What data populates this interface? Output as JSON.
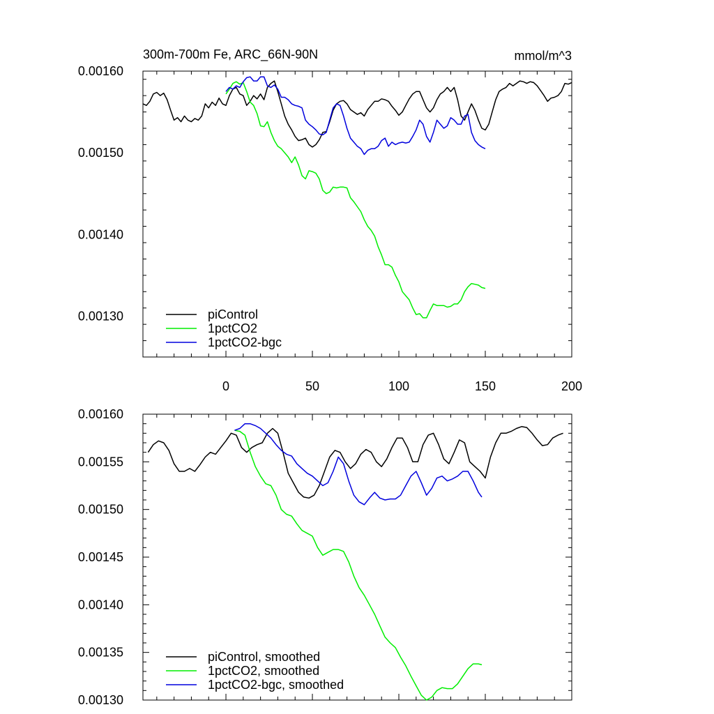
{
  "colors": {
    "piControl": "#000000",
    "1pctCO2": "#00ee00",
    "1pctCO2-bgc": "#0000dd"
  },
  "chart_data": [
    {
      "type": "line",
      "title": "300m-700m Fe, ARC_66N-90N",
      "units": "mmol/m^3",
      "xlim": [
        -48,
        200
      ],
      "ylim": [
        0.00125,
        0.0016
      ],
      "xticks": [
        0,
        50,
        100,
        150,
        200
      ],
      "xtick_labels": [
        "0",
        "50",
        "100",
        "150",
        "200"
      ],
      "yticks": [
        0.0013,
        0.0014,
        0.0015,
        0.0016
      ],
      "ytick_labels": [
        "0.00130",
        "0.00140",
        "0.00150",
        "0.00160"
      ],
      "legend_position": "bottom-left",
      "series": [
        {
          "name": "piControl",
          "color_key": "piControl",
          "x": [
            -48,
            -46,
            -44,
            -42,
            -40,
            -38,
            -36,
            -34,
            -32,
            -30,
            -28,
            -26,
            -24,
            -22,
            -20,
            -18,
            -16,
            -14,
            -12,
            -10,
            -8,
            -6,
            -4,
            -2,
            0,
            2,
            4,
            6,
            8,
            10,
            12,
            14,
            16,
            18,
            20,
            22,
            24,
            26,
            28,
            30,
            32,
            34,
            36,
            38,
            40,
            42,
            44,
            46,
            48,
            50,
            52,
            54,
            56,
            58,
            60,
            62,
            64,
            66,
            68,
            70,
            72,
            74,
            76,
            78,
            80,
            82,
            84,
            86,
            88,
            90,
            92,
            94,
            96,
            98,
            100,
            102,
            104,
            106,
            108,
            110,
            112,
            114,
            116,
            118,
            120,
            122,
            124,
            126,
            128,
            130,
            132,
            134,
            136,
            138,
            140,
            142,
            144,
            146,
            148,
            150,
            152,
            154,
            156,
            158,
            160,
            162,
            164,
            166,
            168,
            170,
            172,
            174,
            176,
            178,
            180,
            182,
            184,
            186,
            188,
            190,
            192,
            194,
            196,
            198,
            200
          ],
          "y": [
            0.00156,
            0.001558,
            0.001563,
            0.001572,
            0.001574,
            0.00157,
            0.001573,
            0.001565,
            0.001552,
            0.00154,
            0.001543,
            0.001538,
            0.001545,
            0.00154,
            0.001538,
            0.001542,
            0.00154,
            0.001545,
            0.00156,
            0.001555,
            0.001562,
            0.001558,
            0.001567,
            0.00156,
            0.001558,
            0.00157,
            0.001578,
            0.00158,
            0.001572,
            0.00157,
            0.001558,
            0.001563,
            0.00157,
            0.001566,
            0.001572,
            0.001565,
            0.00158,
            0.001585,
            0.001588,
            0.001575,
            0.00156,
            0.001545,
            0.001535,
            0.001528,
            0.00152,
            0.001515,
            0.001516,
            0.001518,
            0.00151,
            0.001507,
            0.00151,
            0.001516,
            0.001525,
            0.001526,
            0.001538,
            0.001552,
            0.00156,
            0.001563,
            0.001564,
            0.00156,
            0.001553,
            0.00155,
            0.001547,
            0.001549,
            0.001545,
            0.001553,
            0.001558,
            0.001563,
            0.001563,
            0.001566,
            0.001565,
            0.001563,
            0.001557,
            0.001552,
            0.001546,
            0.00155,
            0.001558,
            0.001566,
            0.001572,
            0.001575,
            0.001575,
            0.001565,
            0.001555,
            0.00155,
            0.001555,
            0.001565,
            0.001572,
            0.001575,
            0.00158,
            0.001575,
            0.00158,
            0.001565,
            0.001545,
            0.00154,
            0.00155,
            0.00156,
            0.001552,
            0.00154,
            0.00153,
            0.001528,
            0.001535,
            0.00155,
            0.001565,
            0.001575,
            0.001578,
            0.00158,
            0.001585,
            0.001582,
            0.001585,
            0.001588,
            0.001587,
            0.001585,
            0.001587,
            0.001586,
            0.001582,
            0.001576,
            0.00157,
            0.001563,
            0.001567,
            0.001568,
            0.00157,
            0.001575,
            0.001585,
            0.001584,
            0.001586
          ]
        },
        {
          "name": "1pctCO2",
          "color_key": "1pctCO2",
          "x": [
            0,
            2,
            4,
            6,
            8,
            10,
            12,
            14,
            16,
            18,
            20,
            22,
            24,
            26,
            28,
            30,
            32,
            34,
            36,
            38,
            40,
            42,
            44,
            46,
            48,
            50,
            52,
            54,
            56,
            58,
            60,
            62,
            64,
            66,
            68,
            70,
            72,
            74,
            76,
            78,
            80,
            82,
            84,
            86,
            88,
            90,
            92,
            94,
            96,
            98,
            100,
            102,
            104,
            106,
            108,
            110,
            112,
            114,
            116,
            118,
            120,
            122,
            124,
            126,
            128,
            130,
            132,
            134,
            136,
            138,
            140,
            142,
            144,
            146,
            148,
            150
          ],
          "y": [
            0.001572,
            0.001578,
            0.001585,
            0.001587,
            0.001584,
            0.001586,
            0.001575,
            0.001562,
            0.001558,
            0.001548,
            0.001533,
            0.001532,
            0.001538,
            0.001525,
            0.001515,
            0.001508,
            0.001505,
            0.0015,
            0.001495,
            0.001488,
            0.001495,
            0.001485,
            0.001472,
            0.001468,
            0.001478,
            0.001477,
            0.001475,
            0.001468,
            0.001454,
            0.00145,
            0.001452,
            0.001458,
            0.001457,
            0.001458,
            0.001458,
            0.001457,
            0.001445,
            0.00144,
            0.001434,
            0.001428,
            0.001418,
            0.00141,
            0.001405,
            0.001398,
            0.001385,
            0.001375,
            0.001363,
            0.001363,
            0.00136,
            0.00135,
            0.001342,
            0.00133,
            0.001325,
            0.00132,
            0.00131,
            0.001302,
            0.001303,
            0.001298,
            0.001298,
            0.001307,
            0.001315,
            0.001313,
            0.001313,
            0.001313,
            0.001311,
            0.001312,
            0.001315,
            0.001315,
            0.00132,
            0.00133,
            0.001336,
            0.00134,
            0.001339,
            0.001338,
            0.001335,
            0.001334
          ]
        },
        {
          "name": "1pctCO2-bgc",
          "color_key": "1pctCO2-bgc",
          "x": [
            0,
            2,
            4,
            6,
            8,
            10,
            12,
            14,
            16,
            18,
            20,
            22,
            24,
            26,
            28,
            30,
            32,
            34,
            36,
            38,
            40,
            42,
            44,
            46,
            48,
            50,
            52,
            54,
            56,
            58,
            60,
            62,
            64,
            66,
            68,
            70,
            72,
            74,
            76,
            78,
            80,
            82,
            84,
            86,
            88,
            90,
            92,
            94,
            96,
            98,
            100,
            102,
            104,
            106,
            108,
            110,
            112,
            114,
            116,
            118,
            120,
            122,
            124,
            126,
            128,
            130,
            132,
            134,
            136,
            138,
            140,
            142,
            144,
            146,
            148,
            150
          ],
          "y": [
            0.001575,
            0.00158,
            0.001578,
            0.001582,
            0.00158,
            0.001587,
            0.001592,
            0.001593,
            0.001588,
            0.001588,
            0.001593,
            0.001593,
            0.001582,
            0.00158,
            0.001583,
            0.001578,
            0.001568,
            0.001568,
            0.001565,
            0.00156,
            0.001558,
            0.001557,
            0.001555,
            0.00154,
            0.001535,
            0.001532,
            0.001528,
            0.001523,
            0.001522,
            0.001525,
            0.00154,
            0.001555,
            0.00156,
            0.001558,
            0.001545,
            0.00153,
            0.001518,
            0.001513,
            0.001508,
            0.001505,
            0.001498,
            0.001503,
            0.001505,
            0.001505,
            0.001508,
            0.001515,
            0.001518,
            0.001508,
            0.001513,
            0.00151,
            0.001512,
            0.001513,
            0.001512,
            0.001513,
            0.00152,
            0.001528,
            0.00154,
            0.001535,
            0.00152,
            0.001513,
            0.001525,
            0.00154,
            0.001535,
            0.00153,
            0.001533,
            0.001543,
            0.00154,
            0.001535,
            0.001535,
            0.001545,
            0.001547,
            0.001525,
            0.001515,
            0.00151,
            0.001507,
            0.001505
          ]
        }
      ]
    },
    {
      "type": "line",
      "title": "",
      "units": "",
      "xlim": [
        -48,
        200
      ],
      "ylim": [
        0.0013,
        0.0016
      ],
      "xticks": [
        0,
        50,
        100,
        150,
        200
      ],
      "yticks": [
        0.0013,
        0.00135,
        0.0014,
        0.00145,
        0.0015,
        0.00155,
        0.0016
      ],
      "ytick_labels": [
        "0.00130",
        "0.00135",
        "0.00140",
        "0.00145",
        "0.00150",
        "0.00155",
        "0.00160"
      ],
      "legend_position": "bottom-left",
      "series": [
        {
          "name": "piControl, smoothed",
          "color_key": "piControl",
          "x": [
            -45,
            -42,
            -39,
            -36,
            -33,
            -30,
            -27,
            -24,
            -21,
            -18,
            -15,
            -12,
            -9,
            -6,
            -3,
            0,
            3,
            6,
            9,
            12,
            15,
            18,
            21,
            24,
            27,
            30,
            33,
            36,
            39,
            42,
            45,
            48,
            51,
            54,
            57,
            60,
            63,
            66,
            69,
            72,
            75,
            78,
            81,
            84,
            87,
            90,
            93,
            96,
            99,
            102,
            105,
            108,
            111,
            114,
            117,
            120,
            123,
            126,
            129,
            132,
            135,
            138,
            141,
            144,
            147,
            150,
            153,
            156,
            159,
            162,
            165,
            168,
            171,
            174,
            177,
            180,
            183,
            186,
            189,
            192,
            195
          ],
          "y": [
            0.00156,
            0.001568,
            0.001572,
            0.00157,
            0.001562,
            0.001548,
            0.00154,
            0.00154,
            0.001543,
            0.00154,
            0.001547,
            0.001555,
            0.00156,
            0.001558,
            0.001565,
            0.001572,
            0.00158,
            0.001578,
            0.001565,
            0.00156,
            0.001565,
            0.001568,
            0.00157,
            0.00158,
            0.001585,
            0.00158,
            0.00156,
            0.001538,
            0.001528,
            0.001518,
            0.001513,
            0.001512,
            0.001515,
            0.001525,
            0.00154,
            0.001555,
            0.001562,
            0.00156,
            0.00155,
            0.001543,
            0.001548,
            0.001558,
            0.001563,
            0.00156,
            0.00155,
            0.001545,
            0.001553,
            0.001565,
            0.001575,
            0.001575,
            0.001565,
            0.00155,
            0.00155,
            0.001568,
            0.001578,
            0.00158,
            0.001568,
            0.001553,
            0.001548,
            0.00156,
            0.001573,
            0.00157,
            0.00155,
            0.001545,
            0.00154,
            0.001533,
            0.001555,
            0.00157,
            0.00158,
            0.00158,
            0.001582,
            0.001585,
            0.001587,
            0.001586,
            0.00158,
            0.001573,
            0.001567,
            0.001568,
            0.001575,
            0.001578,
            0.00158
          ]
        },
        {
          "name": "1pctCO2, smoothed",
          "color_key": "1pctCO2",
          "x": [
            5,
            8,
            11,
            14,
            17,
            20,
            23,
            26,
            29,
            32,
            35,
            38,
            41,
            44,
            47,
            50,
            53,
            56,
            59,
            62,
            65,
            68,
            71,
            74,
            77,
            80,
            83,
            86,
            89,
            92,
            95,
            98,
            101,
            104,
            107,
            110,
            113,
            116,
            119,
            122,
            125,
            128,
            131,
            134,
            137,
            140,
            143,
            146,
            148
          ],
          "y": [
            0.001583,
            0.001582,
            0.001578,
            0.00156,
            0.001545,
            0.001535,
            0.001527,
            0.001525,
            0.001515,
            0.0015,
            0.001495,
            0.001493,
            0.001485,
            0.001478,
            0.001475,
            0.001472,
            0.00146,
            0.001452,
            0.001455,
            0.001458,
            0.001458,
            0.001456,
            0.001445,
            0.00143,
            0.001418,
            0.00141,
            0.0014,
            0.00139,
            0.001378,
            0.001366,
            0.00136,
            0.001355,
            0.001345,
            0.001336,
            0.001325,
            0.001315,
            0.001305,
            0.0013,
            0.001303,
            0.00131,
            0.001313,
            0.001312,
            0.001312,
            0.001317,
            0.001325,
            0.001333,
            0.001338,
            0.001338,
            0.001337
          ]
        },
        {
          "name": "1pctCO2-bgc, smoothed",
          "color_key": "1pctCO2-bgc",
          "x": [
            5,
            8,
            11,
            14,
            17,
            20,
            23,
            26,
            29,
            32,
            35,
            38,
            41,
            44,
            47,
            50,
            53,
            56,
            59,
            62,
            65,
            68,
            71,
            74,
            77,
            80,
            83,
            86,
            89,
            92,
            95,
            98,
            101,
            104,
            107,
            110,
            113,
            116,
            119,
            122,
            125,
            128,
            131,
            134,
            137,
            140,
            143,
            146,
            148
          ],
          "y": [
            0.001583,
            0.001585,
            0.00159,
            0.00159,
            0.001588,
            0.001585,
            0.00158,
            0.001575,
            0.001568,
            0.001562,
            0.001558,
            0.001556,
            0.001548,
            0.001543,
            0.001538,
            0.001535,
            0.00153,
            0.001525,
            0.001528,
            0.00154,
            0.001555,
            0.001548,
            0.00153,
            0.001515,
            0.001508,
            0.001505,
            0.001512,
            0.001518,
            0.001512,
            0.00151,
            0.001511,
            0.001511,
            0.001515,
            0.001525,
            0.001535,
            0.00154,
            0.001528,
            0.001515,
            0.001522,
            0.001533,
            0.001535,
            0.00153,
            0.001532,
            0.001535,
            0.00154,
            0.00154,
            0.00153,
            0.001518,
            0.001513
          ]
        }
      ]
    }
  ]
}
